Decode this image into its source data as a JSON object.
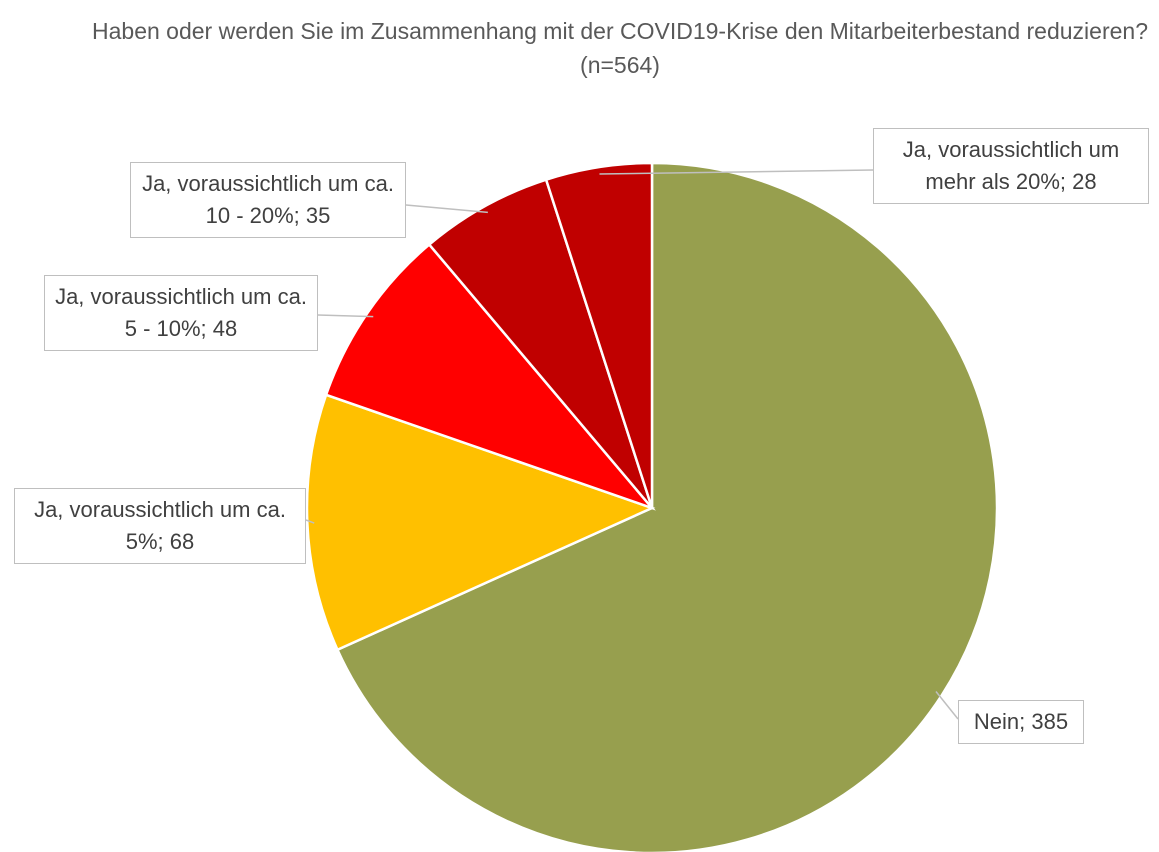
{
  "chart_data": {
    "type": "pie",
    "title": "Haben oder werden Sie im Zusammenhang mit der COVID19-Krise den Mitarbeiterbestand reduzieren? (n=564)",
    "values": [
      385,
      68,
      48,
      35,
      28
    ],
    "value_labels": [
      "Nein; 385",
      "Ja, voraussichtlich um ca. 5%; 68",
      "Ja, voraussichtlich um ca. 5 - 10%; 48",
      "Ja, voraussichtlich um ca. 10 - 20%; 35",
      "Ja, voraussichtlich um mehr als 20%; 28"
    ],
    "colors": [
      "#979f4e",
      "#ffc000",
      "#ff0000",
      "#c00000",
      "#c00000"
    ]
  }
}
